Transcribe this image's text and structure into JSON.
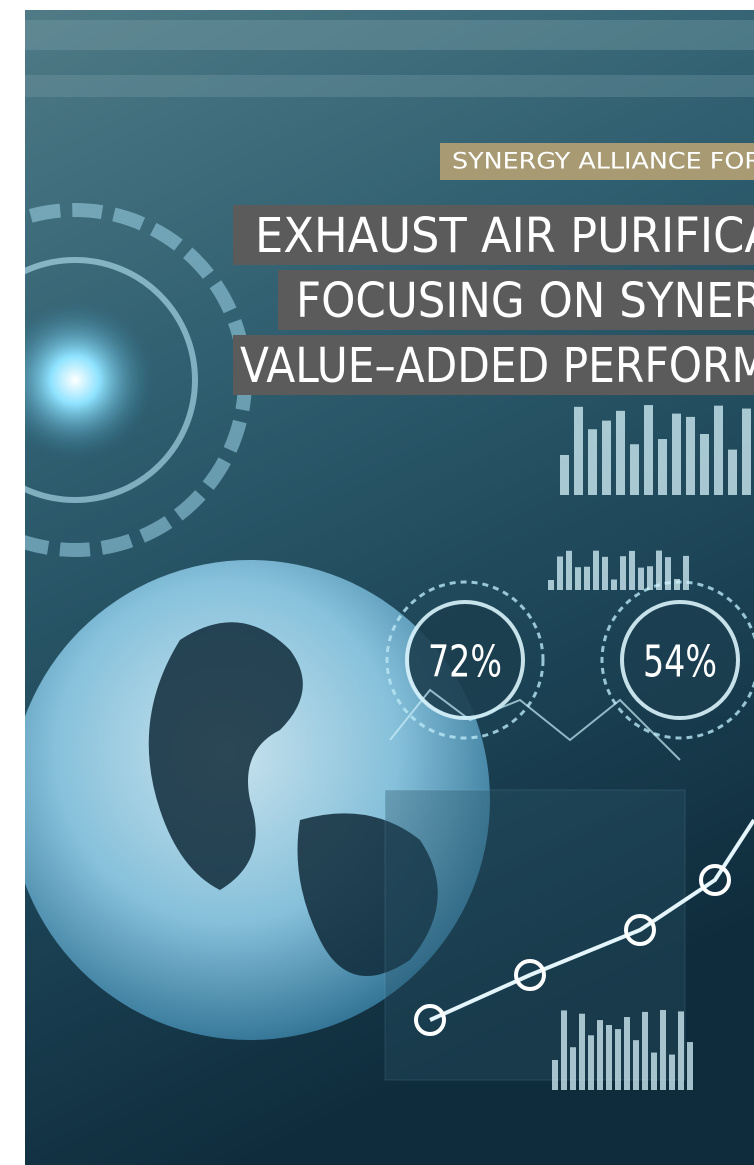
{
  "header": {
    "kicker": "SYNERGY ALLIANCE FOR",
    "title_lines": [
      "EXHAUST AIR PURIFICA",
      "FOCUSING ON SYNER",
      "VALUE–ADDED PERFORM"
    ]
  },
  "gauges": [
    {
      "label": "72%"
    },
    {
      "label": "54%"
    }
  ]
}
